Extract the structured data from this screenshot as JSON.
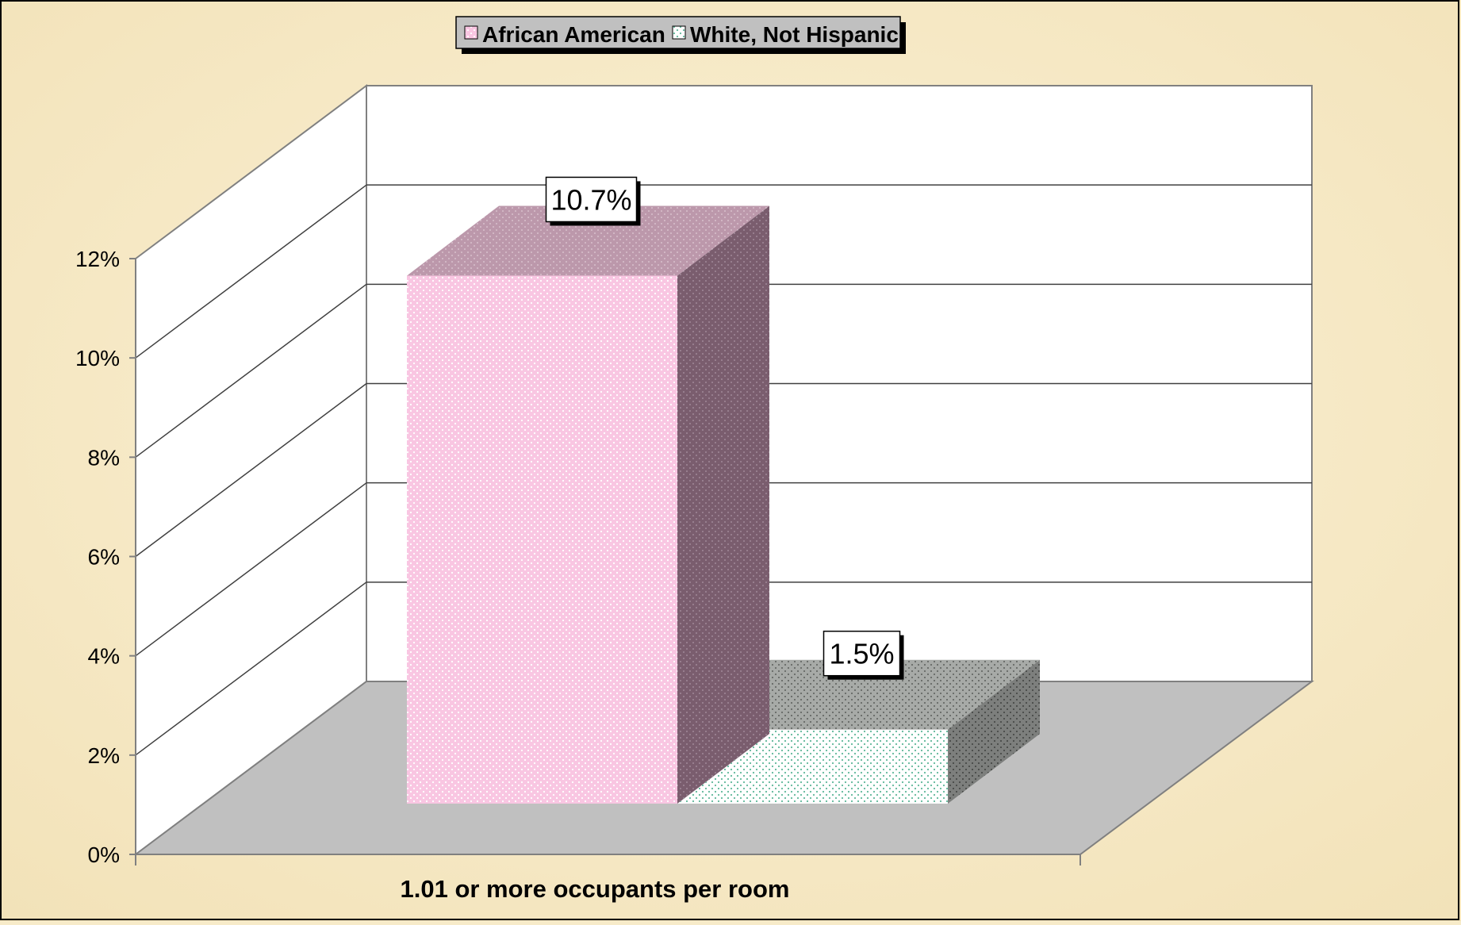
{
  "chart_data": {
    "type": "bar",
    "categories": [
      "1.01 or more occupants per room"
    ],
    "series": [
      {
        "name": "African American",
        "values": [
          10.7
        ],
        "label": "10.7%",
        "color": "#f9c6e2",
        "side_color": "#7a5d6e",
        "top_color": "#bc98ab"
      },
      {
        "name": "White, Not Hispanic",
        "values": [
          1.5
        ],
        "label": "1.5%",
        "color": "#ffffff",
        "side_color": "#7d7f7d",
        "top_color": "#a7aaa7"
      }
    ],
    "ylim": [
      0,
      12
    ],
    "yticks": [
      "0%",
      "2%",
      "4%",
      "6%",
      "8%",
      "10%",
      "12%"
    ],
    "grid": true,
    "legend_position": "top-center",
    "colors": {
      "background": "#f7ebc9",
      "floor": "#c0c0c0",
      "wall": "#ffffff",
      "gridline": "#404040"
    }
  }
}
